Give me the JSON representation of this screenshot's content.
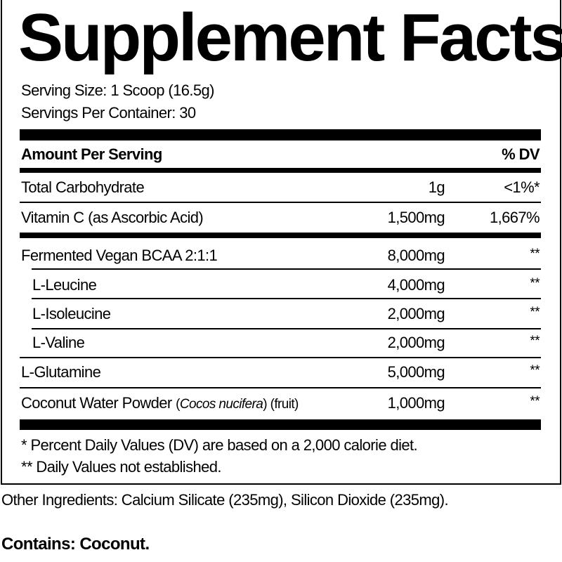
{
  "title": "Supplement Facts",
  "serving_size": "Serving Size: 1 Scoop (16.5g)",
  "servings_per_container": "Servings Per Container: 30",
  "header": {
    "amount": "Amount Per Serving",
    "dv": "% DV"
  },
  "rows": [
    {
      "name": "Total Carbohydrate",
      "amount": "1g",
      "dv": "<1%*"
    },
    {
      "name": "Vitamin C (as Ascorbic Acid)",
      "amount": "1,500mg",
      "dv": "1,667%"
    },
    {
      "name": "Fermented Vegan BCAA 2:1:1",
      "amount": "8,000mg",
      "dv": "**"
    },
    {
      "name": "L-Leucine",
      "amount": "4,000mg",
      "dv": "**"
    },
    {
      "name": "L-Isoleucine",
      "amount": "2,000mg",
      "dv": "**"
    },
    {
      "name": "L-Valine",
      "amount": "2,000mg",
      "dv": "**"
    },
    {
      "name": "L-Glutamine",
      "amount": "5,000mg",
      "dv": "**"
    },
    {
      "name": "Coconut Water Powder",
      "name_paren_open": "(",
      "latin": "Cocos nucifera",
      "name_suffix": ") (fruit)",
      "amount": "1,000mg",
      "dv": "**"
    }
  ],
  "footnotes": [
    "* Percent Daily Values (DV) are based on a 2,000 calorie diet.",
    "** Daily Values not established."
  ],
  "other_ingredients": "Other Ingredients:  Calcium Silicate (235mg), Silicon Dioxide (235mg).",
  "contains": "Contains: Coconut."
}
